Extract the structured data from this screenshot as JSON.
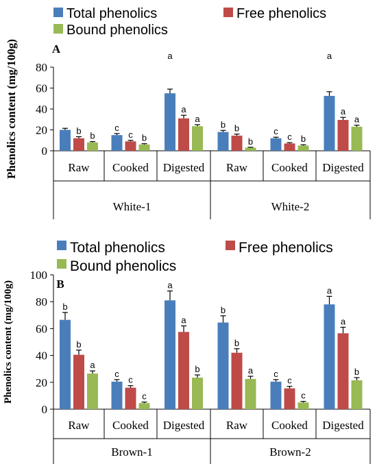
{
  "chart_data": [
    {
      "type": "bar",
      "panel_label": "A",
      "legend_position": "top",
      "legend": [
        "Total phenolics",
        "Free phenolics",
        "Bound phenolics"
      ],
      "ylabel": "Phenolics content (mg/100g)",
      "ylim": [
        0,
        80
      ],
      "yticks": [
        0,
        20,
        40,
        60,
        80
      ],
      "groups": [
        "White-1",
        "White-2"
      ],
      "categories": [
        "Raw",
        "Cooked",
        "Digested",
        "Raw",
        "Cooked",
        "Digested"
      ],
      "series": [
        {
          "name": "Total phenolics",
          "color": "#4a7ebb",
          "values": [
            20,
            15,
            55,
            18,
            12,
            52.5
          ],
          "errors": [
            1.5,
            1.5,
            4,
            1.5,
            1,
            4
          ],
          "letters": [
            "",
            "c",
            "",
            "b",
            "c",
            ""
          ]
        },
        {
          "name": "Free phenolics",
          "color": "#be4b48",
          "values": [
            12,
            9,
            31,
            14.5,
            7,
            29.5
          ],
          "errors": [
            1.5,
            1,
            3,
            1.5,
            0.8,
            2.5
          ],
          "letters": [
            "b",
            "c",
            "a",
            "b",
            "c",
            "a"
          ]
        },
        {
          "name": "Bound phenolics",
          "color": "#98b954",
          "values": [
            8,
            6,
            23.5,
            3,
            5,
            23
          ],
          "errors": [
            0.8,
            0.8,
            1.5,
            0.4,
            0.8,
            1.5
          ],
          "letters": [
            "b",
            "b",
            "a",
            "b",
            "b",
            "a"
          ]
        }
      ],
      "top_letters": [
        "",
        "",
        "a",
        "",
        "",
        "a"
      ]
    },
    {
      "type": "bar",
      "panel_label": "B",
      "legend_position": "top",
      "legend": [
        "Total phenolics",
        "Free phenolics",
        "Bound phenolics"
      ],
      "ylabel": "Phenolics content (mg/100g)",
      "ylim": [
        0,
        100
      ],
      "yticks": [
        0,
        20,
        40,
        60,
        80,
        100
      ],
      "groups": [
        "Brown-1",
        "Brown-2"
      ],
      "categories": [
        "Raw",
        "Cooked",
        "Digested",
        "Raw",
        "Cooked",
        "Digested"
      ],
      "series": [
        {
          "name": "Total phenolics",
          "color": "#4a7ebb",
          "values": [
            66.5,
            20.5,
            81,
            64.5,
            20.5,
            78
          ],
          "errors": [
            5.5,
            1.5,
            7,
            5,
            1.5,
            6
          ],
          "letters": [
            "b",
            "c",
            "a",
            "b",
            "c",
            "a"
          ]
        },
        {
          "name": "Free phenolics",
          "color": "#be4b48",
          "values": [
            40.5,
            16,
            57.5,
            42,
            15.5,
            56.5
          ],
          "errors": [
            3.5,
            1.5,
            4.5,
            3,
            1.5,
            4.5
          ],
          "letters": [
            "b",
            "c",
            "a",
            "b",
            "c",
            "a"
          ]
        },
        {
          "name": "Bound phenolics",
          "color": "#98b954",
          "values": [
            26.5,
            4.5,
            23.5,
            22.5,
            5,
            21.5
          ],
          "errors": [
            2,
            0.8,
            2,
            2,
            0.8,
            2
          ],
          "letters": [
            "a",
            "c",
            "b",
            "a",
            "c",
            "b"
          ]
        }
      ],
      "top_letters": [
        "",
        "",
        "",
        "",
        "",
        ""
      ]
    }
  ]
}
